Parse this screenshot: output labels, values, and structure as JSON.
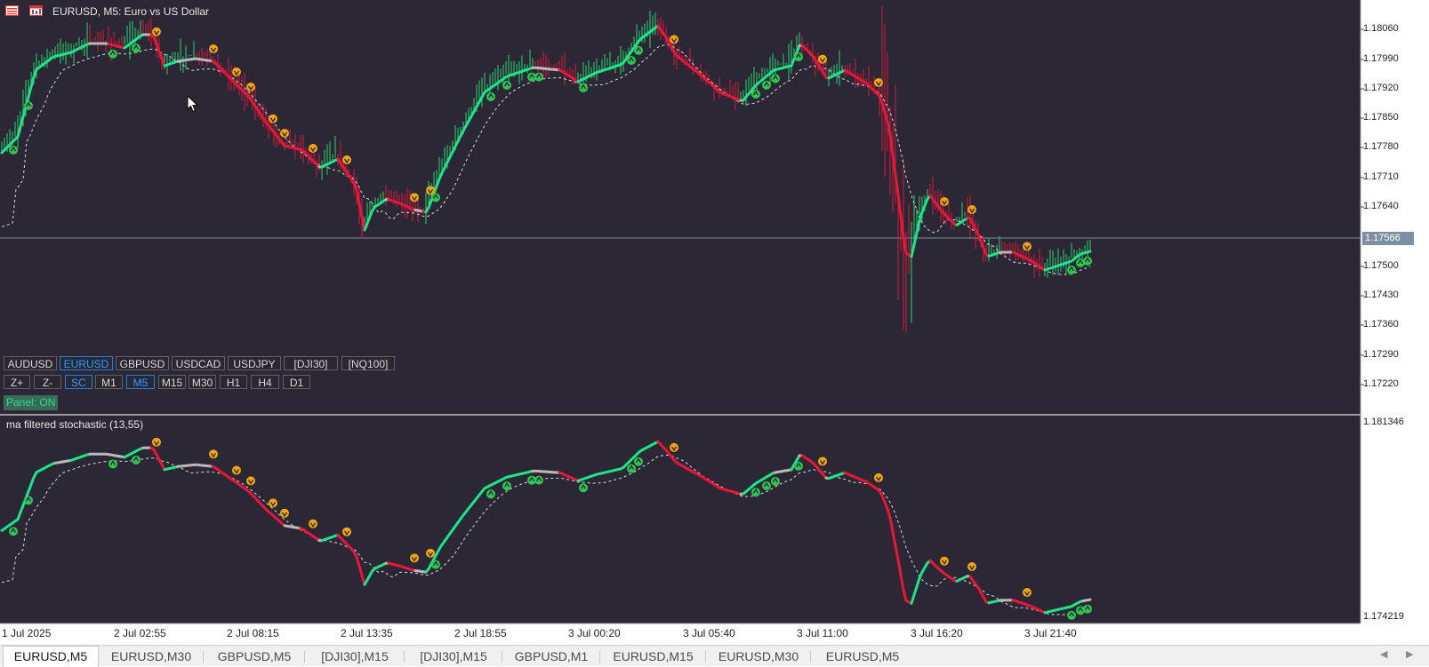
{
  "chart": {
    "title": "EURUSD, M5:  Euro vs US Dollar",
    "subwindow_title": "ma filtered stochastic  (13,55)",
    "background": "#2b2734",
    "colors": {
      "bull_line": "#1ee38a",
      "bear_line": "#e8163b",
      "neutral_line": "#b9b9b9",
      "dashed_line": "#dcdcdc",
      "arrow_up": "#2fc552",
      "arrow_down": "#f3a50f",
      "candle_up": "#2bd16f",
      "candle_down": "#d41b41"
    },
    "current_price": "1.17566",
    "price_axis": [
      "1.18060",
      "1.17990",
      "1.17920",
      "1.17850",
      "1.17780",
      "1.17710",
      "1.17640",
      "1.17500",
      "1.17430",
      "1.17360",
      "1.17290",
      "1.17220"
    ],
    "sub_axis": [
      "1.181346",
      "1.174219"
    ],
    "time_axis": [
      "1 Jul 2025",
      "2 Jul 02:55",
      "2 Jul 08:15",
      "2 Jul 13:35",
      "2 Jul 18:55",
      "3 Jul 00:20",
      "3 Jul 05:40",
      "3 Jul 11:00",
      "3 Jul 16:20",
      "3 Jul 21:40"
    ]
  },
  "panel": {
    "symbols": [
      "AUDUSD",
      "EURUSD",
      "GBPUSD",
      "USDCAD",
      "USDJPY",
      "[DJI30]",
      "[NQ100]"
    ],
    "active_symbol": "EURUSD",
    "controls": [
      "Z+",
      "Z-",
      "SC",
      "M1",
      "M5",
      "M15",
      "M30",
      "H1",
      "H4",
      "D1"
    ],
    "active_controls": [
      "SC",
      "M5"
    ],
    "status": "Panel: ON"
  },
  "tabs": [
    {
      "label": "EURUSD,M5",
      "active": true
    },
    {
      "label": "EURUSD,M30",
      "active": false
    },
    {
      "label": "GBPUSD,M5",
      "active": false
    },
    {
      "label": "[DJI30],M15",
      "active": false
    },
    {
      "label": "[DJI30],M15",
      "active": false
    },
    {
      "label": "GBPUSD,M1",
      "active": false
    },
    {
      "label": "EURUSD,M15",
      "active": false
    },
    {
      "label": "EURUSD,M30",
      "active": false
    },
    {
      "label": "EURUSD,M5",
      "active": false
    }
  ]
}
